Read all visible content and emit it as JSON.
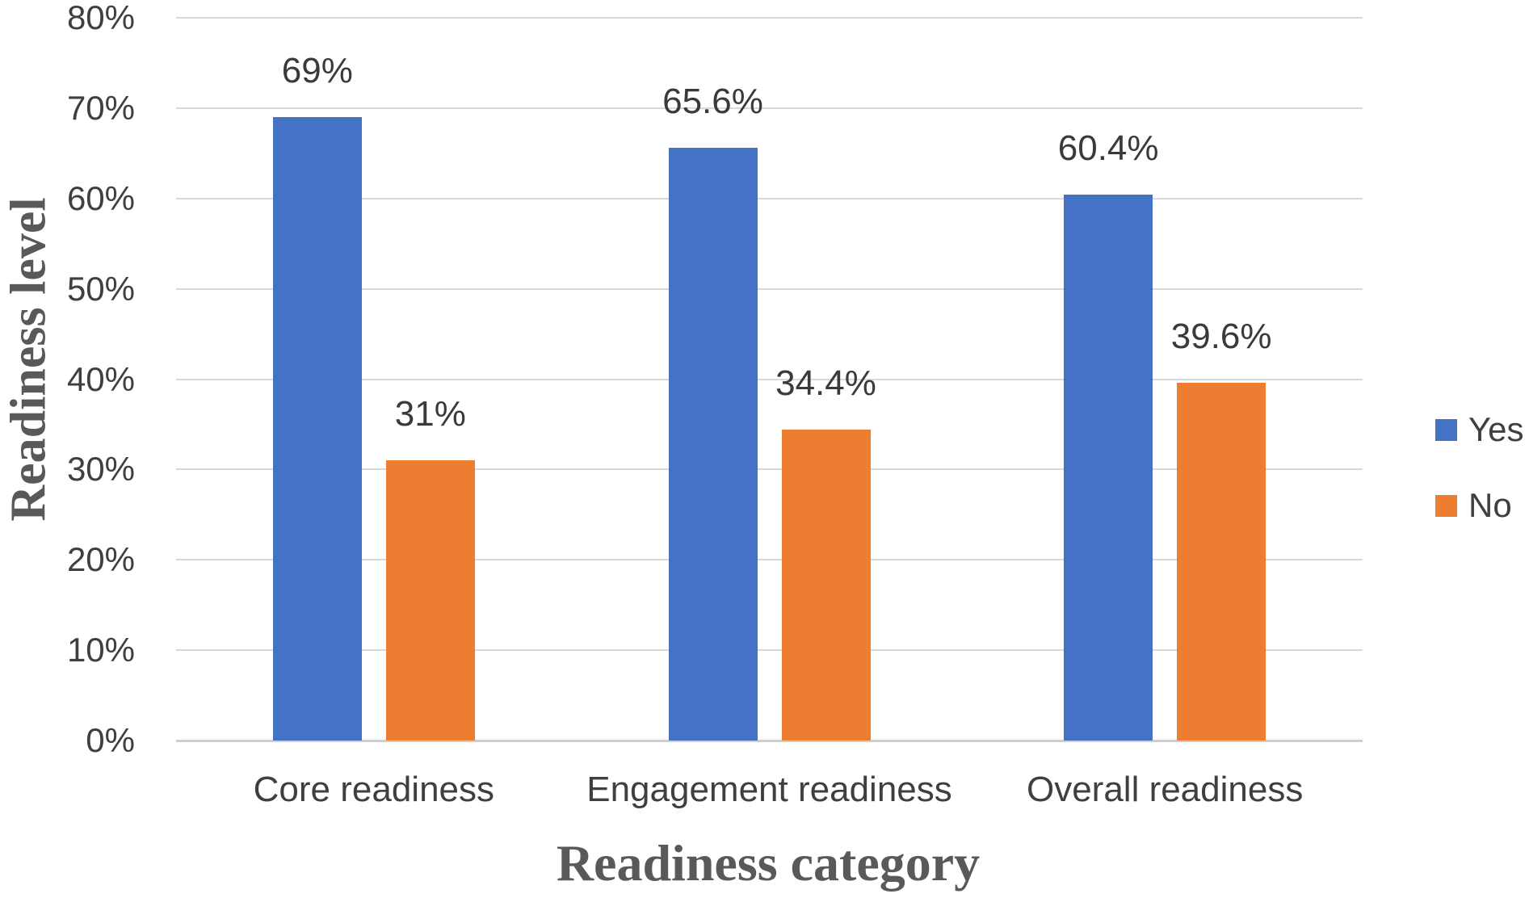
{
  "chart_data": {
    "type": "bar",
    "title": "",
    "categories": [
      "Core readiness",
      "Engagement readiness",
      "Overall readiness"
    ],
    "series": [
      {
        "name": "Yes",
        "color": "#4472C4",
        "values": [
          69,
          65.6,
          60.4
        ],
        "data_labels": [
          "69%",
          "65.6%",
          "60.4%"
        ]
      },
      {
        "name": "No",
        "color": "#ED7D31",
        "values": [
          31,
          34.4,
          39.6
        ],
        "data_labels": [
          "31%",
          "34.4%",
          "39.6%"
        ]
      }
    ],
    "xlabel": "Readiness category",
    "ylabel": "Readiness level",
    "ylim": [
      0,
      80
    ],
    "y_ticks": [
      "0%",
      "10%",
      "20%",
      "30%",
      "40%",
      "50%",
      "60%",
      "70%",
      "80%"
    ],
    "grid": true,
    "legend_position": "right",
    "colors": {
      "gridline": "#d9d9d9",
      "axis_line": "#cfcfcf",
      "tick_text": "#3f3f3f",
      "axis_title_text": "#595959"
    }
  }
}
